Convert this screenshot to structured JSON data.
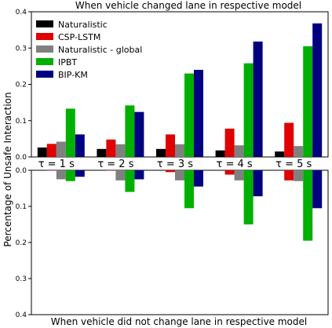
{
  "chart_data": {
    "type": "bar",
    "title": "When vehicle changed lane in respective model",
    "bottom_title": "When vehicle did not change lane in respective model",
    "ylabel": "Percentage of Unsafe Interaction",
    "categories": [
      "τ = 1 s",
      "τ = 2 s",
      "τ = 3 s",
      "τ = 4 s",
      "τ = 5 s"
    ],
    "top_ylim": [
      0,
      0.4
    ],
    "top_yticks": [
      "0.0",
      "0.1",
      "0.2",
      "0.3",
      "0.4"
    ],
    "bottom_ylim": [
      0,
      0.4
    ],
    "bottom_yticks": [
      "0.0",
      "0.1",
      "0.2",
      "0.3",
      "0.4"
    ],
    "legend_position": "top-left",
    "series": [
      {
        "name": "Naturalistic",
        "color": "#000000",
        "top": [
          0.026,
          0.022,
          0.022,
          0.018,
          0.015
        ],
        "bottom": [
          0.0,
          0.0,
          0.0,
          0.0,
          0.0
        ]
      },
      {
        "name": "CSP-LSTM",
        "color": "#e00000",
        "top": [
          0.036,
          0.048,
          0.062,
          0.078,
          0.094
        ],
        "bottom": [
          0.001,
          0.001,
          0.005,
          0.012,
          0.028
        ]
      },
      {
        "name": "Naturalistic - global",
        "color": "#808080",
        "top": [
          0.042,
          0.035,
          0.035,
          0.032,
          0.03
        ],
        "bottom": [
          0.025,
          0.028,
          0.028,
          0.028,
          0.03
        ]
      },
      {
        "name": "IPBT",
        "color": "#00b000",
        "top": [
          0.133,
          0.142,
          0.23,
          0.258,
          0.305
        ],
        "bottom": [
          0.03,
          0.06,
          0.105,
          0.15,
          0.195
        ]
      },
      {
        "name": "BIP-KM",
        "color": "#000080",
        "top": [
          0.062,
          0.124,
          0.24,
          0.318,
          0.368
        ],
        "bottom": [
          0.018,
          0.025,
          0.045,
          0.072,
          0.105
        ]
      }
    ]
  }
}
